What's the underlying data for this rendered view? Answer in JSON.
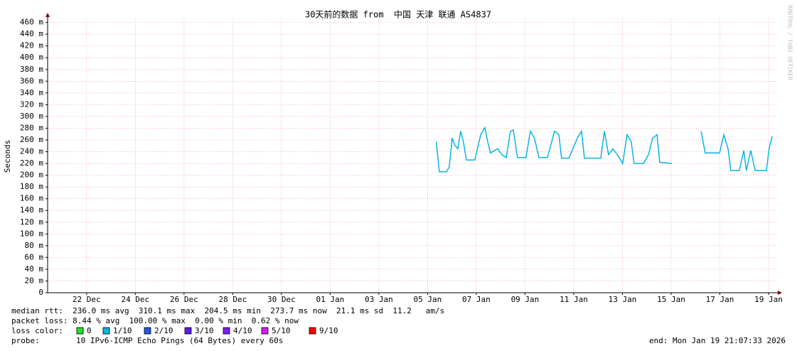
{
  "chart_data": {
    "type": "line",
    "title": "30天前的数据 from  中国 天津 联通 AS4837",
    "y_label": "Seconds",
    "watermark": "RRDTOOL / TOBI OETIKER",
    "color": "#0ab4e6",
    "grid": true,
    "ylim": [
      0,
      468
    ],
    "yticks": [
      0,
      {
        "value": 20,
        "label": "20 m"
      },
      {
        "value": 40,
        "label": "40 m"
      },
      {
        "value": 60,
        "label": "60 m"
      },
      {
        "value": 80,
        "label": "80 m"
      },
      {
        "value": 100,
        "label": "100 m"
      },
      {
        "value": 120,
        "label": "120 m"
      },
      {
        "value": 140,
        "label": "140 m"
      },
      {
        "value": 160,
        "label": "160 m"
      },
      {
        "value": 180,
        "label": "180 m"
      },
      {
        "value": 200,
        "label": "200 m"
      },
      {
        "value": 220,
        "label": "220 m"
      },
      {
        "value": 240,
        "label": "240 m"
      },
      {
        "value": 260,
        "label": "260 m"
      },
      {
        "value": 280,
        "label": "280 m"
      },
      {
        "value": 300,
        "label": "300 m"
      },
      {
        "value": 320,
        "label": "320 m"
      },
      {
        "value": 340,
        "label": "340 m"
      },
      {
        "value": 360,
        "label": "360 m"
      },
      {
        "value": 380,
        "label": "380 m"
      },
      {
        "value": 400,
        "label": "400 m"
      },
      {
        "value": 420,
        "label": "420 m"
      },
      {
        "value": 440,
        "label": "440 m"
      },
      {
        "value": 460,
        "label": "460 m"
      }
    ],
    "xlim": [
      -1.6,
      28.35
    ],
    "xticks": [
      {
        "value": 0,
        "label": "22 Dec"
      },
      {
        "value": 2,
        "label": "24 Dec"
      },
      {
        "value": 4,
        "label": "26 Dec"
      },
      {
        "value": 6,
        "label": "28 Dec"
      },
      {
        "value": 8,
        "label": "30 Dec"
      },
      {
        "value": 10,
        "label": "01 Jan"
      },
      {
        "value": 12,
        "label": "03 Jan"
      },
      {
        "value": 14,
        "label": "05 Jan"
      },
      {
        "value": 16,
        "label": "07 Jan"
      },
      {
        "value": 18,
        "label": "09 Jan"
      },
      {
        "value": 20,
        "label": "11 Jan"
      },
      {
        "value": 22,
        "label": "13 Jan"
      },
      {
        "value": 24,
        "label": "15 Jan"
      },
      {
        "value": 26,
        "label": "17 Jan"
      },
      {
        "value": 28,
        "label": "19 Jan"
      }
    ],
    "x": [
      14.36,
      14.48,
      14.77,
      14.89,
      15.01,
      15.12,
      15.24,
      15.36,
      15.47,
      15.59,
      15.94,
      16.18,
      16.35,
      16.47,
      16.58,
      16.88,
      17.05,
      17.23,
      17.4,
      17.52,
      17.69,
      18.04,
      18.22,
      18.39,
      18.57,
      18.92,
      19.21,
      19.39,
      19.5,
      19.8,
      20.15,
      20.32,
      20.44,
      21.11,
      21.26,
      21.43,
      21.61,
      21.84,
      22.01,
      22.19,
      22.36,
      22.48,
      22.86,
      23.07,
      23.24,
      23.42,
      23.53,
      24.03,
      24.6,
      25.23,
      25.4,
      25.99,
      26.16,
      26.34,
      26.45,
      26.8,
      26.98,
      27.09,
      27.27,
      27.45,
      27.91,
      28.03,
      28.15
    ],
    "values": [
      257,
      206,
      206,
      214,
      263,
      251,
      245,
      275,
      257,
      226,
      226,
      269,
      281,
      257,
      238,
      245,
      235,
      230,
      275,
      277,
      230,
      230,
      275,
      263,
      230,
      230,
      275,
      269,
      229,
      229,
      263,
      275,
      229,
      229,
      275,
      235,
      245,
      232,
      220,
      269,
      257,
      220,
      220,
      235,
      263,
      269,
      222,
      220,
      null,
      275,
      238,
      238,
      269,
      245,
      208,
      208,
      242,
      208,
      242,
      208,
      208,
      247,
      266
    ],
    "stats": {
      "median_rtt": "median rtt:  236.0 ms avg  310.1 ms max  204.5 ms min  273.7 ms now  21.1 ms sd  11.2   am/s",
      "packet_loss": "packet loss: 8.44 % avg  100.00 % max  0.00 % min  0.62 % now",
      "loss_color_label": "loss color:",
      "loss_colors": [
        {
          "name": "0",
          "color": "#26e026"
        },
        {
          "name": "1/10",
          "color": "#0ab4e6"
        },
        {
          "name": "2/10",
          "color": "#1e5adc"
        },
        {
          "name": "3/10",
          "color": "#5a1ee6"
        },
        {
          "name": "4/10",
          "color": "#7d1ef0"
        },
        {
          "name": "5/10",
          "color": "#d21ef0"
        },
        {
          "name": "9/10",
          "color": "#ff0000"
        }
      ],
      "probe_label": "probe:",
      "probe": "10 IPv6-ICMP Echo Pings (64 Bytes) every 60s",
      "end": "end: Mon Jan 19 21:07:33 2026"
    }
  }
}
